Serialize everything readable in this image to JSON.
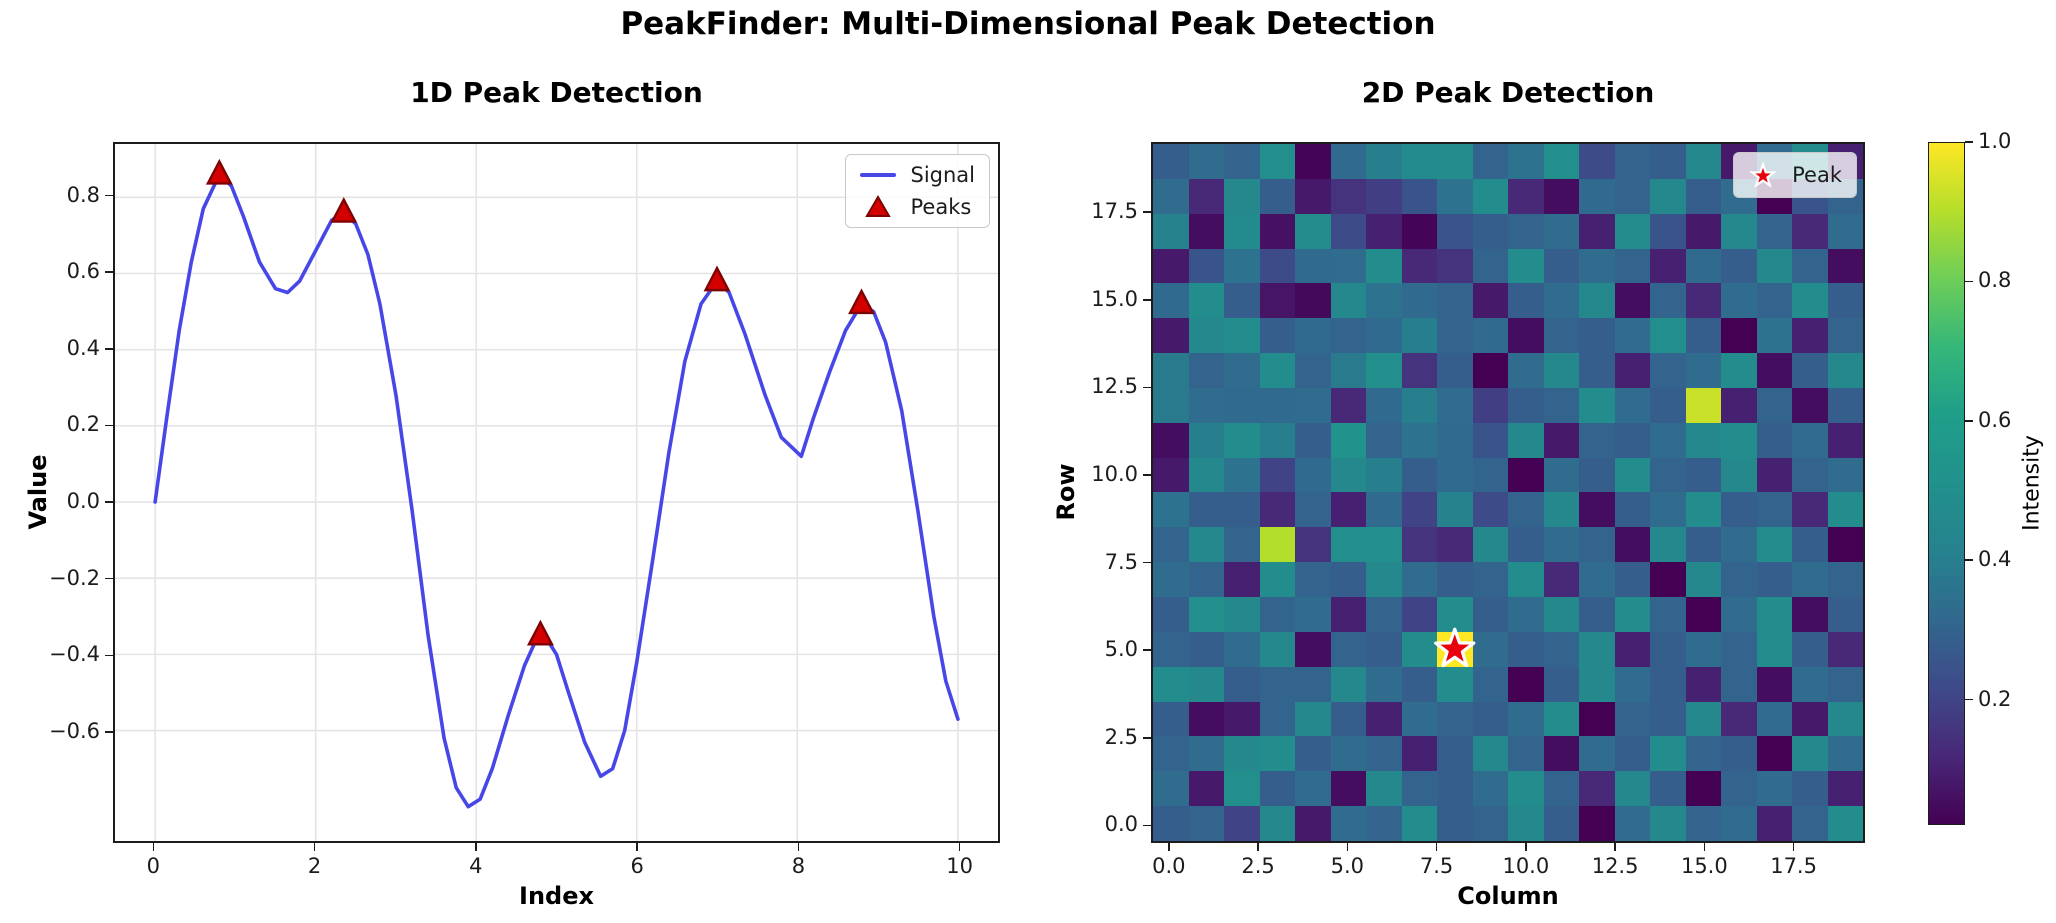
{
  "figure": {
    "title": "PeakFinder: Multi-Dimensional Peak Detection"
  },
  "colors": {
    "signal_line": "#4747e8",
    "peak_marker_fill": "#d40000",
    "peak_marker_edge": "#7d0303",
    "star_fill": "#e8000b",
    "star_edge": "#ffffff",
    "grid_line": "#e4e4e4",
    "spine": "#1c1c1c",
    "viridis_min": "#440154",
    "viridis_max": "#fde725"
  },
  "chart_data": [
    {
      "type": "line",
      "title": "1D Peak Detection",
      "xlabel": "Index",
      "ylabel": "Value",
      "xlim": [
        -0.5,
        10.5
      ],
      "ylim": [
        -0.89,
        0.94
      ],
      "xticks": [
        0,
        2,
        4,
        6,
        8,
        10
      ],
      "xtick_labels": [
        "0",
        "2",
        "4",
        "6",
        "8",
        "10"
      ],
      "yticks": [
        0.8,
        0.6,
        0.4,
        0.2,
        0.0,
        -0.2,
        -0.4,
        -0.6
      ],
      "ytick_labels": [
        "0.8",
        "0.6",
        "0.4",
        "0.2",
        "0.0",
        "−0.2",
        "−0.4",
        "−0.6"
      ],
      "grid": true,
      "legend": {
        "position": "upper right",
        "entries": [
          {
            "label": "Signal",
            "marker": "line"
          },
          {
            "label": "Peaks",
            "marker": "triangle"
          }
        ]
      },
      "series": [
        {
          "name": "Signal",
          "x": [
            0,
            0.15,
            0.3,
            0.45,
            0.6,
            0.8,
            0.95,
            1.1,
            1.3,
            1.5,
            1.65,
            1.8,
            2.0,
            2.2,
            2.35,
            2.5,
            2.65,
            2.8,
            3.0,
            3.2,
            3.4,
            3.6,
            3.75,
            3.9,
            4.05,
            4.2,
            4.4,
            4.6,
            4.75,
            4.85,
            5.0,
            5.15,
            5.35,
            5.55,
            5.7,
            5.85,
            6.0,
            6.2,
            6.4,
            6.6,
            6.8,
            7.0,
            7.15,
            7.35,
            7.6,
            7.8,
            8.05,
            8.2,
            8.4,
            8.6,
            8.8,
            8.95,
            9.1,
            9.3,
            9.5,
            9.7,
            9.85,
            10.0
          ],
          "y": [
            0.0,
            0.23,
            0.45,
            0.63,
            0.77,
            0.86,
            0.83,
            0.75,
            0.63,
            0.56,
            0.55,
            0.58,
            0.66,
            0.74,
            0.76,
            0.73,
            0.65,
            0.52,
            0.28,
            -0.02,
            -0.35,
            -0.62,
            -0.75,
            -0.8,
            -0.78,
            -0.7,
            -0.56,
            -0.43,
            -0.36,
            -0.35,
            -0.4,
            -0.5,
            -0.63,
            -0.72,
            -0.7,
            -0.6,
            -0.42,
            -0.15,
            0.13,
            0.37,
            0.52,
            0.58,
            0.55,
            0.44,
            0.28,
            0.17,
            0.12,
            0.22,
            0.34,
            0.45,
            0.52,
            0.5,
            0.42,
            0.24,
            -0.02,
            -0.3,
            -0.47,
            -0.57
          ]
        }
      ],
      "peaks": {
        "name": "Peaks",
        "x": [
          0.8,
          2.35,
          4.8,
          7.0,
          8.8
        ],
        "y": [
          0.86,
          0.76,
          -0.35,
          0.58,
          0.52
        ]
      }
    },
    {
      "type": "heatmap",
      "title": "2D Peak Detection",
      "xlabel": "Column",
      "ylabel": "Row",
      "colormap": "viridis",
      "vmin": 0.02,
      "vmax": 1.0,
      "origin": "lower",
      "grid_size": [
        20,
        20
      ],
      "xticks": [
        0.0,
        2.5,
        5.0,
        7.5,
        10.0,
        12.5,
        15.0,
        17.5
      ],
      "xtick_labels": [
        "0.0",
        "2.5",
        "5.0",
        "7.5",
        "10.0",
        "12.5",
        "15.0",
        "17.5"
      ],
      "yticks": [
        0.0,
        2.5,
        5.0,
        7.5,
        10.0,
        12.5,
        15.0,
        17.5
      ],
      "ytick_labels": [
        "0.0",
        "2.5",
        "5.0",
        "7.5",
        "10.0",
        "12.5",
        "15.0",
        "17.5"
      ],
      "peak_marker": {
        "col": 8,
        "row": 5
      },
      "legend": {
        "position": "upper right",
        "entries": [
          {
            "label": "Peak",
            "marker": "star"
          }
        ]
      },
      "colorbar": {
        "label": "Intensity",
        "ticks": [
          1.0,
          0.8,
          0.6,
          0.4,
          0.2
        ],
        "tick_labels": [
          "1.0",
          "0.8",
          "0.6",
          "0.4",
          "0.2"
        ]
      },
      "values_rows_bottom_to_top": [
        [
          0.28,
          0.3,
          0.2,
          0.45,
          0.08,
          0.33,
          0.3,
          0.48,
          0.28,
          0.3,
          0.45,
          0.28,
          0.02,
          0.33,
          0.45,
          0.3,
          0.33,
          0.1,
          0.3,
          0.48
        ],
        [
          0.33,
          0.08,
          0.5,
          0.28,
          0.33,
          0.05,
          0.45,
          0.3,
          0.28,
          0.33,
          0.48,
          0.3,
          0.12,
          0.45,
          0.28,
          0.02,
          0.3,
          0.33,
          0.28,
          0.1
        ],
        [
          0.3,
          0.33,
          0.45,
          0.48,
          0.28,
          0.33,
          0.3,
          0.1,
          0.28,
          0.45,
          0.3,
          0.05,
          0.33,
          0.28,
          0.48,
          0.3,
          0.28,
          0.02,
          0.45,
          0.33
        ],
        [
          0.28,
          0.05,
          0.08,
          0.3,
          0.45,
          0.28,
          0.1,
          0.33,
          0.3,
          0.28,
          0.33,
          0.48,
          0.02,
          0.3,
          0.28,
          0.45,
          0.12,
          0.33,
          0.08,
          0.45
        ],
        [
          0.48,
          0.45,
          0.28,
          0.3,
          0.3,
          0.45,
          0.33,
          0.28,
          0.48,
          0.3,
          0.02,
          0.28,
          0.45,
          0.33,
          0.28,
          0.1,
          0.3,
          0.05,
          0.33,
          0.3
        ],
        [
          0.3,
          0.28,
          0.33,
          0.45,
          0.05,
          0.3,
          0.28,
          0.48,
          1.0,
          0.33,
          0.28,
          0.3,
          0.45,
          0.1,
          0.28,
          0.33,
          0.3,
          0.48,
          0.28,
          0.12
        ],
        [
          0.28,
          0.5,
          0.45,
          0.3,
          0.33,
          0.1,
          0.3,
          0.2,
          0.48,
          0.28,
          0.33,
          0.45,
          0.28,
          0.48,
          0.3,
          0.02,
          0.33,
          0.48,
          0.05,
          0.28
        ],
        [
          0.33,
          0.3,
          0.1,
          0.48,
          0.3,
          0.28,
          0.45,
          0.33,
          0.28,
          0.3,
          0.48,
          0.12,
          0.33,
          0.28,
          0.02,
          0.45,
          0.3,
          0.28,
          0.33,
          0.3
        ],
        [
          0.3,
          0.45,
          0.3,
          0.9,
          0.15,
          0.5,
          0.5,
          0.15,
          0.12,
          0.45,
          0.28,
          0.33,
          0.3,
          0.05,
          0.45,
          0.28,
          0.33,
          0.48,
          0.28,
          0.02
        ],
        [
          0.35,
          0.28,
          0.28,
          0.12,
          0.3,
          0.1,
          0.32,
          0.2,
          0.42,
          0.22,
          0.3,
          0.45,
          0.05,
          0.28,
          0.33,
          0.48,
          0.28,
          0.3,
          0.12,
          0.48
        ],
        [
          0.08,
          0.45,
          0.35,
          0.2,
          0.32,
          0.45,
          0.4,
          0.28,
          0.32,
          0.3,
          0.02,
          0.33,
          0.28,
          0.48,
          0.3,
          0.28,
          0.45,
          0.1,
          0.3,
          0.33
        ],
        [
          0.05,
          0.4,
          0.48,
          0.4,
          0.28,
          0.52,
          0.3,
          0.35,
          0.32,
          0.25,
          0.45,
          0.08,
          0.3,
          0.28,
          0.33,
          0.45,
          0.48,
          0.28,
          0.33,
          0.1
        ],
        [
          0.38,
          0.33,
          0.32,
          0.32,
          0.33,
          0.12,
          0.32,
          0.4,
          0.33,
          0.18,
          0.28,
          0.3,
          0.48,
          0.33,
          0.28,
          0.93,
          0.1,
          0.3,
          0.05,
          0.28
        ],
        [
          0.38,
          0.3,
          0.33,
          0.48,
          0.3,
          0.38,
          0.5,
          0.15,
          0.28,
          0.02,
          0.33,
          0.45,
          0.28,
          0.1,
          0.3,
          0.33,
          0.48,
          0.05,
          0.28,
          0.45
        ],
        [
          0.08,
          0.45,
          0.48,
          0.28,
          0.32,
          0.3,
          0.32,
          0.4,
          0.3,
          0.32,
          0.05,
          0.3,
          0.28,
          0.33,
          0.5,
          0.28,
          0.02,
          0.35,
          0.1,
          0.3
        ],
        [
          0.32,
          0.48,
          0.28,
          0.07,
          0.04,
          0.45,
          0.35,
          0.32,
          0.3,
          0.08,
          0.28,
          0.33,
          0.45,
          0.05,
          0.3,
          0.12,
          0.33,
          0.3,
          0.48,
          0.28
        ],
        [
          0.08,
          0.25,
          0.35,
          0.22,
          0.32,
          0.33,
          0.48,
          0.12,
          0.15,
          0.3,
          0.48,
          0.28,
          0.33,
          0.3,
          0.1,
          0.32,
          0.28,
          0.45,
          0.3,
          0.05
        ],
        [
          0.42,
          0.05,
          0.47,
          0.06,
          0.48,
          0.22,
          0.1,
          0.03,
          0.25,
          0.28,
          0.3,
          0.33,
          0.1,
          0.48,
          0.25,
          0.08,
          0.45,
          0.3,
          0.12,
          0.33
        ],
        [
          0.33,
          0.12,
          0.45,
          0.28,
          0.08,
          0.15,
          0.18,
          0.25,
          0.35,
          0.48,
          0.12,
          0.05,
          0.32,
          0.3,
          0.45,
          0.28,
          0.33,
          0.02,
          0.25,
          0.3
        ],
        [
          0.28,
          0.33,
          0.3,
          0.5,
          0.03,
          0.32,
          0.4,
          0.47,
          0.48,
          0.3,
          0.35,
          0.5,
          0.22,
          0.3,
          0.28,
          0.45,
          0.08,
          0.33,
          0.48,
          0.1
        ]
      ]
    }
  ]
}
